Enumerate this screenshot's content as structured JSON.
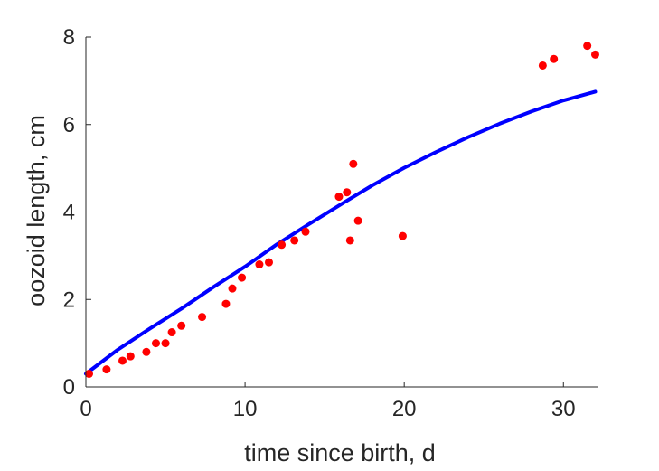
{
  "chart_data": {
    "type": "scatter",
    "xlabel": "time since birth, d",
    "ylabel": "oozoid length, cm",
    "xlim": [
      0,
      32.2
    ],
    "ylim": [
      0,
      8
    ],
    "xticks": [
      0,
      10,
      20,
      30
    ],
    "yticks": [
      0,
      2,
      4,
      6,
      8
    ],
    "grid": false,
    "box": false,
    "series": [
      {
        "kind": "points",
        "color": "#ff0000",
        "x": [
          0.2,
          1.3,
          2.3,
          2.8,
          3.8,
          4.4,
          5.0,
          5.4,
          6.0,
          7.3,
          8.8,
          9.2,
          9.8,
          10.9,
          11.5,
          12.3,
          13.1,
          13.8,
          15.9,
          16.4,
          16.6,
          16.8,
          17.1,
          19.9,
          28.7,
          29.4,
          31.5,
          32.0
        ],
        "y": [
          0.3,
          0.4,
          0.6,
          0.7,
          0.8,
          1.0,
          1.0,
          1.25,
          1.4,
          1.6,
          1.9,
          2.25,
          2.5,
          2.8,
          2.85,
          3.25,
          3.35,
          3.55,
          4.35,
          4.45,
          3.35,
          5.1,
          3.8,
          3.45,
          7.35,
          7.5,
          7.8,
          7.6
        ]
      },
      {
        "kind": "line",
        "color": "#0000ff",
        "x": [
          0,
          2,
          4,
          6,
          8,
          10,
          12,
          14,
          16,
          18,
          20,
          22,
          24,
          26,
          28,
          30,
          32
        ],
        "y": [
          0.3,
          0.85,
          1.33,
          1.79,
          2.28,
          2.75,
          3.26,
          3.72,
          4.17,
          4.61,
          5.01,
          5.37,
          5.71,
          6.02,
          6.3,
          6.55,
          6.75
        ]
      }
    ]
  }
}
